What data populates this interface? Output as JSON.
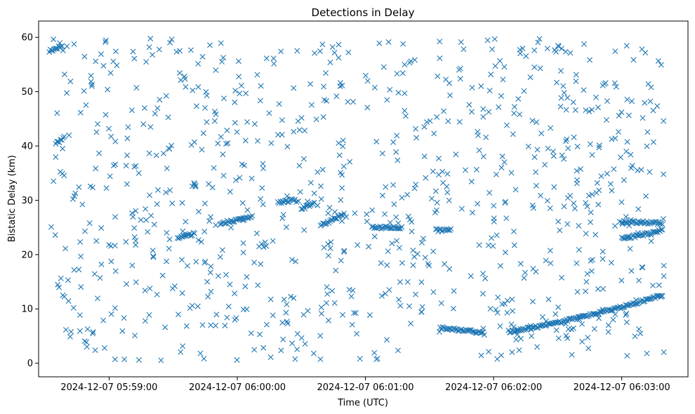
{
  "chart_data": {
    "type": "scatter",
    "title": "Detections in Delay",
    "xlabel": "Time (UTC)",
    "ylabel": "Bistatic Delay (km)",
    "marker": "x",
    "color": "#1f77b4",
    "grid": false,
    "xlim": [
      "2024-12-07 05:58:27",
      "2024-12-07 06:03:31"
    ],
    "ylim": [
      -2.5,
      63
    ],
    "x_ticks": [
      "2024-12-07 05:59:00",
      "2024-12-07 06:00:00",
      "2024-12-07 06:01:00",
      "2024-12-07 06:02:00",
      "2024-12-07 06:03:00"
    ],
    "y_ticks": [
      0,
      10,
      20,
      30,
      40,
      50,
      60
    ],
    "tracks": [
      {
        "x_start": "2024-12-07 06:01:35",
        "x_end": "2024-12-07 06:01:55",
        "y_start": 6.5,
        "y_end": 5.6
      },
      {
        "x_start": "2024-12-07 06:02:07",
        "x_end": "2024-12-07 06:03:19",
        "y_start": 5.8,
        "y_end": 12.5
      },
      {
        "x_start": "2024-12-07 06:03:00",
        "x_end": "2024-12-07 06:03:19",
        "y_start": 23.0,
        "y_end": 24.5
      },
      {
        "x_start": "2024-12-07 06:03:00",
        "x_end": "2024-12-07 06:03:19",
        "y_start": 26.0,
        "y_end": 25.8
      },
      {
        "x_start": "2024-12-07 05:59:32",
        "x_end": "2024-12-07 05:59:40",
        "y_start": 23.0,
        "y_end": 23.9
      },
      {
        "x_start": "2024-12-07 05:59:52",
        "x_end": "2024-12-07 06:00:07",
        "y_start": 25.8,
        "y_end": 27.0
      },
      {
        "x_start": "2024-12-07 06:00:19",
        "x_end": "2024-12-07 06:00:27",
        "y_start": 29.5,
        "y_end": 30.2
      },
      {
        "x_start": "2024-12-07 06:00:30",
        "x_end": "2024-12-07 06:00:36",
        "y_start": 28.5,
        "y_end": 29.5
      },
      {
        "x_start": "2024-12-07 06:00:39",
        "x_end": "2024-12-07 06:00:50",
        "y_start": 25.5,
        "y_end": 27.5
      },
      {
        "x_start": "2024-12-07 06:01:03",
        "x_end": "2024-12-07 06:01:17",
        "y_start": 25.0,
        "y_end": 25.0
      },
      {
        "x_start": "2024-12-07 06:01:33",
        "x_end": "2024-12-07 06:01:40",
        "y_start": 24.5,
        "y_end": 24.5
      },
      {
        "x_start": "2024-12-07 05:58:32",
        "x_end": "2024-12-07 05:58:38",
        "y_start": 57.5,
        "y_end": 58.5
      },
      {
        "x_start": "2024-12-07 05:58:35",
        "x_end": "2024-12-07 05:58:39",
        "y_start": 40.5,
        "y_end": 41.5
      }
    ],
    "clutter_count": 900,
    "clutter_x_range": [
      "2024-12-07 05:58:32",
      "2024-12-07 06:03:20"
    ],
    "clutter_y_range": [
      0.5,
      59.8
    ]
  }
}
